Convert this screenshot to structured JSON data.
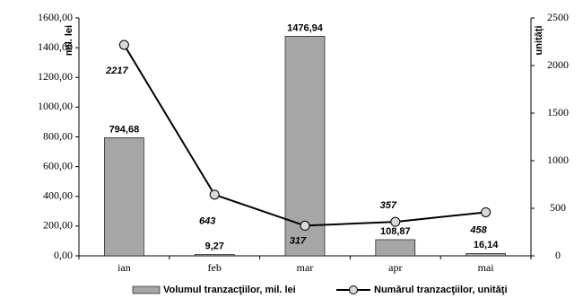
{
  "chart_data": {
    "type": "bar-line",
    "categories": [
      "ian",
      "feb",
      "mar",
      "apr",
      "mai"
    ],
    "y_label": "mil. lei",
    "y2_label": "unități",
    "ylim": [
      0,
      1600
    ],
    "yticks": [
      {
        "value": 0,
        "label": "0,00"
      },
      {
        "value": 200,
        "label": "200,00"
      },
      {
        "value": 400,
        "label": "400,00"
      },
      {
        "value": 600,
        "label": "600,00"
      },
      {
        "value": 800,
        "label": "800,00"
      },
      {
        "value": 1000,
        "label": "1000,00"
      },
      {
        "value": 1200,
        "label": "1200,00"
      },
      {
        "value": 1400,
        "label": "1400,00"
      },
      {
        "value": 1600,
        "label": "1600,00"
      }
    ],
    "y2lim": [
      0,
      2500
    ],
    "y2ticks": [
      0,
      500,
      1000,
      1500,
      2000,
      2500
    ],
    "series": [
      {
        "name": "Volumul tranzacţiilor, mil. lei",
        "type": "bar",
        "color": "#a6a6a6",
        "values": [
          794.68,
          9.27,
          1476.94,
          108.87,
          16.14
        ],
        "value_labels": [
          "794,68",
          "9,27",
          "1476,94",
          "108,87",
          "16,14"
        ]
      },
      {
        "name": "Numărul tranzacţiilor, unităţi",
        "type": "line",
        "axis": "y2",
        "color": "#000000",
        "values": [
          2217,
          643,
          317,
          357,
          458
        ]
      }
    ]
  }
}
